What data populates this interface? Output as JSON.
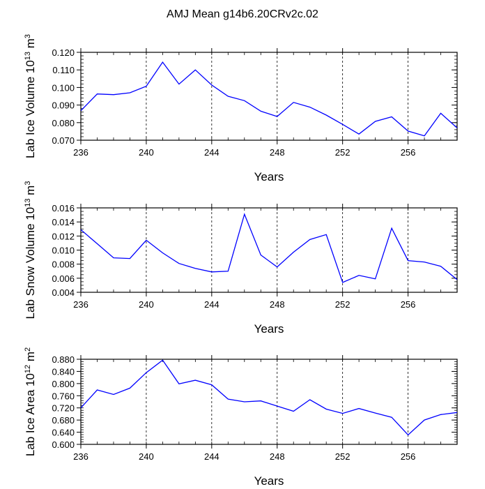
{
  "title": "AMJ Mean g14b6.20CRv2c.02",
  "chart_data": [
    {
      "type": "line",
      "ylabel": "Lab Ice Volume",
      "yunit_base": "10",
      "yunit_exp": "13",
      "yunit_unit": "m",
      "yunit_unit_exp": "3",
      "xlabel": "Years",
      "xlim": [
        236,
        259
      ],
      "ylim": [
        0.07,
        0.12
      ],
      "yticks": [
        0.07,
        0.08,
        0.09,
        0.1,
        0.11,
        0.12
      ],
      "ytick_labels": [
        "0.070",
        "0.080",
        "0.090",
        "0.100",
        "0.110",
        "0.120"
      ],
      "yminor_step": 0.002,
      "xticks": [
        236,
        240,
        244,
        248,
        252,
        256
      ],
      "xtick_labels": [
        "236",
        "240",
        "244",
        "248",
        "252",
        "256"
      ],
      "grid_x": [
        240,
        244,
        248,
        252,
        256
      ],
      "x": [
        236,
        237,
        238,
        239,
        240,
        241,
        242,
        243,
        244,
        245,
        246,
        247,
        248,
        249,
        250,
        251,
        252,
        253,
        254,
        255,
        256,
        257,
        258,
        259
      ],
      "series": [
        {
          "name": "Lab Ice Volume",
          "color": "#0000ff",
          "values": [
            0.0868,
            0.0963,
            0.0959,
            0.097,
            0.1007,
            0.1144,
            0.1019,
            0.11,
            0.1014,
            0.095,
            0.0925,
            0.0865,
            0.0835,
            0.0915,
            0.0888,
            0.0843,
            0.079,
            0.0735,
            0.0807,
            0.0833,
            0.0752,
            0.0725,
            0.0853,
            0.077
          ]
        }
      ]
    },
    {
      "type": "line",
      "ylabel": "Lab Snow Volume",
      "yunit_base": "10",
      "yunit_exp": "13",
      "yunit_unit": "m",
      "yunit_unit_exp": "3",
      "xlabel": "Years",
      "xlim": [
        236,
        259
      ],
      "ylim": [
        0.004,
        0.016
      ],
      "yticks": [
        0.004,
        0.006,
        0.008,
        0.01,
        0.012,
        0.014,
        0.016
      ],
      "ytick_labels": [
        "0.004",
        "0.006",
        "0.008",
        "0.010",
        "0.012",
        "0.014",
        "0.016"
      ],
      "yminor_step": 0.0005,
      "xticks": [
        236,
        240,
        244,
        248,
        252,
        256
      ],
      "xtick_labels": [
        "236",
        "240",
        "244",
        "248",
        "252",
        "256"
      ],
      "grid_x": [
        240,
        244,
        248,
        252,
        256
      ],
      "x": [
        236,
        237,
        238,
        239,
        240,
        241,
        242,
        243,
        244,
        245,
        246,
        247,
        248,
        249,
        250,
        251,
        252,
        253,
        254,
        255,
        256,
        257,
        258,
        259
      ],
      "series": [
        {
          "name": "Lab Snow Volume",
          "color": "#0000ff",
          "values": [
            0.0129,
            0.0109,
            0.0089,
            0.0088,
            0.0114,
            0.0096,
            0.0081,
            0.0074,
            0.0069,
            0.007,
            0.0151,
            0.0093,
            0.0076,
            0.0097,
            0.0115,
            0.0122,
            0.0054,
            0.0064,
            0.0059,
            0.0131,
            0.0085,
            0.0083,
            0.0077,
            0.0058
          ]
        }
      ]
    },
    {
      "type": "line",
      "ylabel": "Lab Ice Area",
      "yunit_base": "10",
      "yunit_exp": "12",
      "yunit_unit": "m",
      "yunit_unit_exp": "2",
      "xlabel": "Years",
      "xlim": [
        236,
        259
      ],
      "ylim": [
        0.6,
        0.88
      ],
      "yticks": [
        0.6,
        0.64,
        0.68,
        0.72,
        0.76,
        0.8,
        0.84,
        0.88
      ],
      "ytick_labels": [
        "0.600",
        "0.640",
        "0.680",
        "0.720",
        "0.760",
        "0.800",
        "0.840",
        "0.880"
      ],
      "yminor_step": 0.008,
      "xticks": [
        236,
        240,
        244,
        248,
        252,
        256
      ],
      "xtick_labels": [
        "236",
        "240",
        "244",
        "248",
        "252",
        "256"
      ],
      "grid_x": [
        240,
        244,
        248,
        252,
        256
      ],
      "x": [
        236,
        237,
        238,
        239,
        240,
        241,
        242,
        243,
        244,
        245,
        246,
        247,
        248,
        249,
        250,
        251,
        252,
        253,
        254,
        255,
        256,
        257,
        258,
        259
      ],
      "series": [
        {
          "name": "Lab Ice Area",
          "color": "#0000ff",
          "values": [
            0.72,
            0.779,
            0.764,
            0.785,
            0.836,
            0.877,
            0.799,
            0.811,
            0.796,
            0.749,
            0.74,
            0.743,
            0.726,
            0.709,
            0.747,
            0.716,
            0.702,
            0.718,
            0.703,
            0.689,
            0.631,
            0.68,
            0.698,
            0.705
          ]
        }
      ]
    }
  ]
}
